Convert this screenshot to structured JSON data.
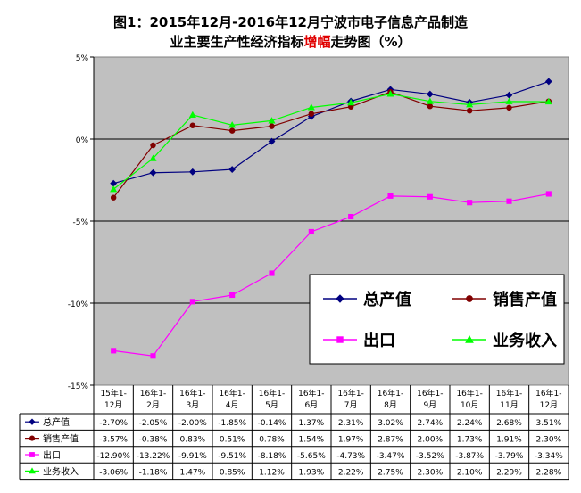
{
  "title": {
    "line1": "图1：2015年12月-2016年12月宁波市电子信息产品制造",
    "line2_pre": "业主要生产性经济指标",
    "line2_highlight": "增幅",
    "line2_post": "走势图（%）",
    "highlight_color": "#e00000"
  },
  "chart_data": {
    "type": "line",
    "categories": [
      [
        "15年1-",
        "12月"
      ],
      [
        "16年1-",
        "2月"
      ],
      [
        "16年1-",
        "3月"
      ],
      [
        "16年1-",
        "4月"
      ],
      [
        "16年1-",
        "5月"
      ],
      [
        "16年1-",
        "6月"
      ],
      [
        "16年1-",
        "7月"
      ],
      [
        "16年1-",
        "8月"
      ],
      [
        "16年1-",
        "9月"
      ],
      [
        "16年1-",
        "10月"
      ],
      [
        "16年1-",
        "11月"
      ],
      [
        "16年1-",
        "12月"
      ]
    ],
    "ylim": [
      -15,
      5
    ],
    "yticks": [
      5,
      0,
      -5,
      -10,
      -15
    ],
    "ytick_labels": [
      "5%",
      "0%",
      "-5%",
      "-10%",
      "-15%"
    ],
    "grid": true,
    "plot_background": "#c0c0c0",
    "legend_position": "lower-right",
    "series": [
      {
        "name": "总产值",
        "color": "#000080",
        "marker": "diamond",
        "values": [
          -2.7,
          -2.05,
          -2.0,
          -1.85,
          -0.14,
          1.37,
          2.31,
          3.02,
          2.74,
          2.24,
          2.68,
          3.51
        ],
        "labels": [
          "-2.70%",
          "-2.05%",
          "-2.00%",
          "-1.85%",
          "-0.14%",
          "1.37%",
          "2.31%",
          "3.02%",
          "2.74%",
          "2.24%",
          "2.68%",
          "3.51%"
        ]
      },
      {
        "name": "销售产值",
        "color": "#800000",
        "marker": "circle",
        "values": [
          -3.57,
          -0.38,
          0.83,
          0.51,
          0.78,
          1.54,
          1.97,
          2.87,
          2.0,
          1.73,
          1.91,
          2.3
        ],
        "labels": [
          "-3.57%",
          "-0.38%",
          "0.83%",
          "0.51%",
          "0.78%",
          "1.54%",
          "1.97%",
          "2.87%",
          "2.00%",
          "1.73%",
          "1.91%",
          "2.30%"
        ]
      },
      {
        "name": "出口",
        "color": "#ff00ff",
        "marker": "square",
        "values": [
          -12.9,
          -13.22,
          -9.91,
          -9.51,
          -8.18,
          -5.65,
          -4.73,
          -3.47,
          -3.52,
          -3.87,
          -3.79,
          -3.34
        ],
        "labels": [
          "-12.90%",
          "-13.22%",
          "-9.91%",
          "-9.51%",
          "-8.18%",
          "-5.65%",
          "-4.73%",
          "-3.47%",
          "-3.52%",
          "-3.87%",
          "-3.79%",
          "-3.34%"
        ]
      },
      {
        "name": "业务收入",
        "color": "#00ff00",
        "marker": "triangle",
        "values": [
          -3.06,
          -1.18,
          1.47,
          0.85,
          1.12,
          1.93,
          2.22,
          2.75,
          2.3,
          2.1,
          2.29,
          2.28
        ],
        "labels": [
          "-3.06%",
          "-1.18%",
          "1.47%",
          "0.85%",
          "1.12%",
          "1.93%",
          "2.22%",
          "2.75%",
          "2.30%",
          "2.10%",
          "2.29%",
          "2.28%"
        ]
      }
    ]
  }
}
